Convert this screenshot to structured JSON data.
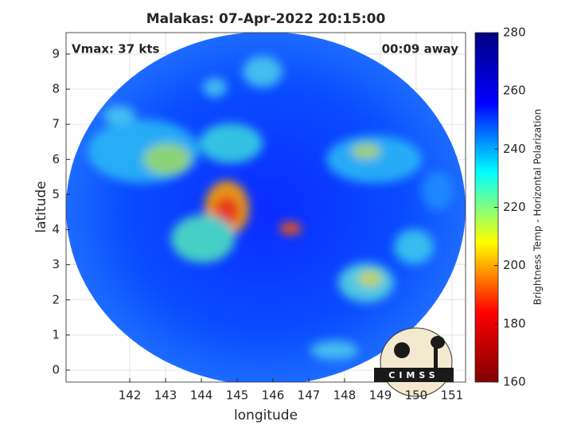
{
  "chart_data": {
    "type": "image-map",
    "title": "Malakas: 07-Apr-2022 20:15:00",
    "annotations": [
      "Vmax: 37 kts",
      "00:09 away"
    ],
    "xlabel": "longitude",
    "ylabel": "latitude",
    "xlim": [
      140.22,
      151.38
    ],
    "ylim": [
      -0.34,
      9.61
    ],
    "xticks": [
      142,
      143,
      144,
      145,
      146,
      147,
      148,
      149,
      150,
      151
    ],
    "yticks": [
      0,
      1,
      2,
      3,
      4,
      5,
      6,
      7,
      8,
      9
    ],
    "grid": true,
    "colorbar": {
      "label": "Brightness Temp - Horizontal Polarization",
      "clim": [
        160,
        280
      ],
      "ticks": [
        160,
        180,
        200,
        220,
        240,
        260,
        280
      ],
      "colormap": [
        "#7f0000",
        "#ff0000",
        "#ffff00",
        "#00ffff",
        "#0000ff",
        "#00007f"
      ]
    },
    "logo": "CIMSS"
  }
}
